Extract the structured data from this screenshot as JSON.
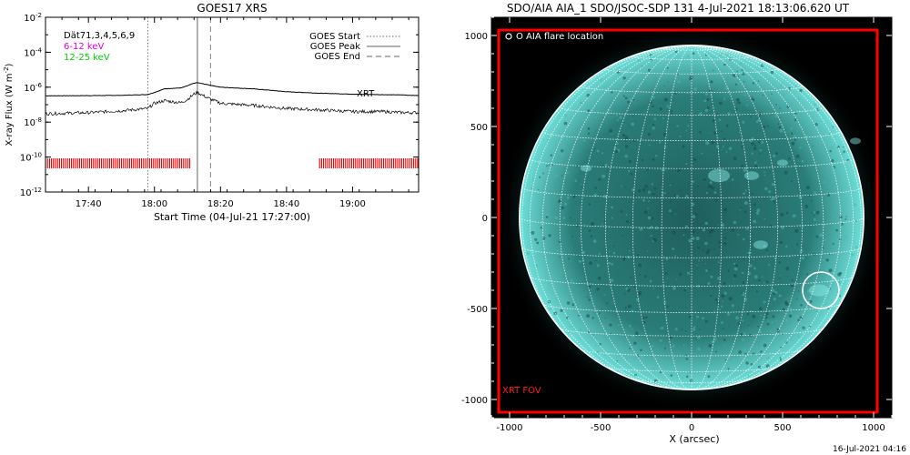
{
  "chart_data": [
    {
      "type": "line",
      "title": "GOES17 XRS",
      "xlabel": "Start Time (04-Jul-21 17:27:00)",
      "ylabel": "X-ray Flux (W m⁻²)",
      "ylabel_main": "X-ray Flux (W m",
      "ylabel_sup": "-2",
      "ylabel_close": ")",
      "scale_y": "log",
      "xlim": [
        "17:27",
        "19:20"
      ],
      "ylim": [
        1e-12,
        0.01
      ],
      "x_ticks": [
        "17:40",
        "18:00",
        "18:20",
        "18:40",
        "19:00"
      ],
      "y_ticks": [
        {
          "value": 0.01,
          "base": "10",
          "exp": "-2"
        },
        {
          "value": 0.0001,
          "base": "10",
          "exp": "-4"
        },
        {
          "value": 1e-06,
          "base": "10",
          "exp": "-6"
        },
        {
          "value": 1e-08,
          "base": "10",
          "exp": "-8"
        },
        {
          "value": 1e-10,
          "base": "10",
          "exp": "-10"
        },
        {
          "value": 1e-12,
          "base": "10",
          "exp": "-12"
        }
      ],
      "left_legend": [
        {
          "text": "Dät71,3,4,5,6,9",
          "color": "#000000"
        },
        {
          "text": "6-12 keV",
          "color": "#e000e0"
        },
        {
          "text": "12-25 keV",
          "color": "#00d000"
        }
      ],
      "right_legend": [
        {
          "text": "GOES Start",
          "style": "dotted"
        },
        {
          "text": "GOES Peak",
          "style": "solid"
        },
        {
          "text": "GOES End",
          "style": "dashed"
        }
      ],
      "xrt_label": "XRT",
      "xrt_color": "#e00000",
      "xrt_coverage": [
        [
          "17:27",
          "18:11"
        ],
        [
          "18:50",
          "19:20"
        ]
      ],
      "markers": {
        "start": "17:58",
        "peak": "18:13",
        "end": "18:17"
      },
      "series": [
        {
          "name": "6-12 keV",
          "x": [
            "17:27",
            "17:40",
            "17:50",
            "17:58",
            "18:00",
            "18:03",
            "18:05",
            "18:08",
            "18:10",
            "18:12",
            "18:13",
            "18:16",
            "18:20",
            "18:30",
            "18:40",
            "18:50",
            "19:00",
            "19:10",
            "19:15",
            "19:20"
          ],
          "values": [
            3.2e-07,
            3.3e-07,
            3.4e-07,
            3.8e-07,
            5e-07,
            8e-07,
            8.5e-07,
            9e-07,
            1.2e-06,
            1.7e-06,
            1.8e-06,
            1.4e-06,
            1e-06,
            8e-07,
            5.5e-07,
            4.5e-07,
            4e-07,
            3.7e-07,
            3.6e-07,
            3.3e-07
          ]
        },
        {
          "name": "12-25 keV",
          "x": [
            "17:27",
            "17:40",
            "17:50",
            "17:58",
            "18:00",
            "18:03",
            "18:05",
            "18:08",
            "18:10",
            "18:12",
            "18:13",
            "18:16",
            "18:20",
            "18:30",
            "18:40",
            "18:50",
            "19:00",
            "19:10",
            "19:15",
            "19:20"
          ],
          "values": [
            3e-08,
            3.5e-08,
            4.5e-08,
            6e-08,
            1.2e-07,
            1.7e-07,
            1.5e-07,
            1.3e-07,
            2e-07,
            4e-07,
            5e-07,
            2.5e-07,
            1.2e-07,
            9e-08,
            6e-08,
            5e-08,
            4e-08,
            4e-08,
            3.5e-08,
            3.5e-08
          ]
        }
      ]
    },
    {
      "type": "image",
      "title": "SDO/AIA AIA_1 SDO/JSOC-SDP 131  4-Jul-2021 18:13:06.620 UT",
      "xlabel": "X (arcsec)",
      "ylabel": "",
      "xlim": [
        -1100,
        1100
      ],
      "ylim": [
        -1100,
        1100
      ],
      "x_ticks": [
        -1000,
        -500,
        0,
        500,
        1000
      ],
      "y_ticks": [
        1000,
        500,
        0,
        -500,
        -1000
      ],
      "legend": "O AIA flare location",
      "solar_radius": 946,
      "grid_spacing_deg": 10,
      "xrt_fov_label": "XRT FOV",
      "xrt_fov_color": "#ff0000",
      "xrt_fov_x": [
        -1060,
        1020
      ],
      "xrt_fov_y": [
        -1070,
        1030
      ],
      "flare_location": {
        "x": 710,
        "y": -400,
        "radius": 100
      },
      "colors": {
        "disk": "#2f8a86",
        "background": "#000000",
        "grid": "#ffffff"
      }
    }
  ],
  "footer": {
    "timestamp": "16-Jul-2021 04:16"
  }
}
